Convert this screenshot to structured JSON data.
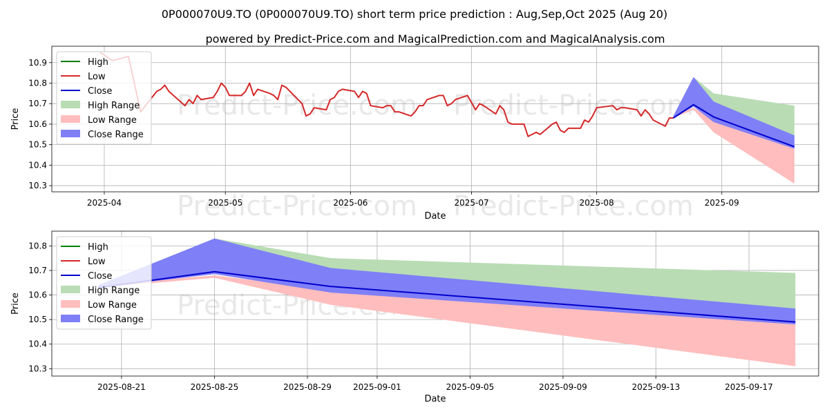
{
  "title": "0P000070U9.TO (0P000070U9.TO) short term price prediction : Aug,Sep,Oct 2025 (Aug 20)",
  "subtitle": "powered by Predict-Price.com and MagicalPrediction.com and MagicalAnalysis.com",
  "watermark": "Predict-Price.com",
  "colors": {
    "high": "#008000",
    "low": "#d62728",
    "close": "#0000cc",
    "high_range": "#b9dcb4",
    "low_range": "#ffbdbd",
    "close_range": "#7f7ff7",
    "grid": "#b0b0b0"
  },
  "legend": {
    "position": "top-left",
    "items": [
      "High",
      "Low",
      "Close",
      "High Range",
      "Low Range",
      "Close Range"
    ]
  },
  "chart_data": [
    {
      "type": "line",
      "panel": "top",
      "xlabel": "Date",
      "ylabel": "Price",
      "xlim": [
        "2025-03-19",
        "2025-09-25"
      ],
      "ylim": [
        10.27,
        10.98
      ],
      "xticks": [
        "2025-04-01",
        "2025-05-01",
        "2025-06-01",
        "2025-07-01",
        "2025-08-01",
        "2025-09-01"
      ],
      "xtick_labels": [
        "2025-04",
        "2025-05",
        "2025-06",
        "2025-07",
        "2025-08",
        "2025-09"
      ],
      "yticks": [
        10.3,
        10.4,
        10.5,
        10.6,
        10.7,
        10.8,
        10.9
      ],
      "grid": true,
      "series": [
        {
          "name": "Low",
          "x": [
            "2025-03-31",
            "2025-04-03",
            "2025-04-07",
            "2025-04-10",
            "2025-04-14",
            "2025-04-15",
            "2025-04-16",
            "2025-04-17",
            "2025-04-21",
            "2025-04-22",
            "2025-04-23",
            "2025-04-24",
            "2025-04-25",
            "2025-04-28",
            "2025-04-29",
            "2025-04-30",
            "2025-05-01",
            "2025-05-02",
            "2025-05-05",
            "2025-05-06",
            "2025-05-07",
            "2025-05-08",
            "2025-05-09",
            "2025-05-12",
            "2025-05-13",
            "2025-05-14",
            "2025-05-15",
            "2025-05-16",
            "2025-05-20",
            "2025-05-21",
            "2025-05-22",
            "2025-05-23",
            "2025-05-26",
            "2025-05-27",
            "2025-05-28",
            "2025-05-29",
            "2025-05-30",
            "2025-06-02",
            "2025-06-03",
            "2025-06-04",
            "2025-06-05",
            "2025-06-06",
            "2025-06-09",
            "2025-06-10",
            "2025-06-11",
            "2025-06-12",
            "2025-06-13",
            "2025-06-16",
            "2025-06-17",
            "2025-06-18",
            "2025-06-19",
            "2025-06-20",
            "2025-06-23",
            "2025-06-24",
            "2025-06-25",
            "2025-06-26",
            "2025-06-27",
            "2025-06-30",
            "2025-07-02",
            "2025-07-03",
            "2025-07-04",
            "2025-07-07",
            "2025-07-08",
            "2025-07-09",
            "2025-07-10",
            "2025-07-11",
            "2025-07-14",
            "2025-07-15",
            "2025-07-16",
            "2025-07-17",
            "2025-07-18",
            "2025-07-21",
            "2025-07-22",
            "2025-07-23",
            "2025-07-24",
            "2025-07-25",
            "2025-07-28",
            "2025-07-29",
            "2025-07-30",
            "2025-07-31",
            "2025-08-01",
            "2025-08-05",
            "2025-08-06",
            "2025-08-07",
            "2025-08-08",
            "2025-08-11",
            "2025-08-12",
            "2025-08-13",
            "2025-08-14",
            "2025-08-15",
            "2025-08-18",
            "2025-08-19",
            "2025-08-20"
          ],
          "values": [
            10.95,
            10.91,
            10.93,
            10.66,
            10.76,
            10.77,
            10.79,
            10.76,
            10.69,
            10.72,
            10.7,
            10.74,
            10.72,
            10.73,
            10.76,
            10.8,
            10.78,
            10.74,
            10.74,
            10.76,
            10.8,
            10.74,
            10.77,
            10.75,
            10.74,
            10.72,
            10.79,
            10.78,
            10.7,
            10.64,
            10.65,
            10.68,
            10.67,
            10.72,
            10.73,
            10.76,
            10.77,
            10.76,
            10.73,
            10.76,
            10.75,
            10.69,
            10.68,
            10.69,
            10.69,
            10.66,
            10.66,
            10.64,
            10.66,
            10.69,
            10.69,
            10.72,
            10.74,
            10.74,
            10.69,
            10.7,
            10.72,
            10.74,
            10.67,
            10.7,
            10.69,
            10.65,
            10.69,
            10.67,
            10.61,
            10.6,
            10.6,
            10.54,
            10.55,
            10.56,
            10.55,
            10.6,
            10.61,
            10.57,
            10.56,
            10.58,
            10.58,
            10.62,
            10.61,
            10.64,
            10.68,
            10.69,
            10.67,
            10.68,
            10.68,
            10.67,
            10.64,
            10.67,
            10.65,
            10.62,
            10.59,
            10.63,
            10.63
          ]
        }
      ],
      "forecast": {
        "x": [
          "2025-08-20",
          "2025-08-25",
          "2025-08-30",
          "2025-09-19"
        ],
        "high_range": {
          "upper": [
            10.64,
            10.83,
            10.75,
            10.69
          ],
          "lower": [
            10.63,
            10.69,
            10.63,
            10.5
          ]
        },
        "close_range": {
          "upper": [
            10.64,
            10.83,
            10.71,
            10.545
          ],
          "lower": [
            10.63,
            10.685,
            10.61,
            10.48
          ]
        },
        "low_range": {
          "upper": [
            10.64,
            10.68,
            10.62,
            10.48
          ],
          "lower": [
            10.63,
            10.67,
            10.56,
            10.31
          ]
        },
        "close": [
          10.63,
          10.695,
          10.635,
          10.49
        ]
      }
    },
    {
      "type": "line",
      "panel": "bottom",
      "xlabel": "Date",
      "ylabel": "Price",
      "xlim": [
        "2025-08-18",
        "2025-09-20"
      ],
      "ylim": [
        10.27,
        10.86
      ],
      "xticks": [
        "2025-08-21",
        "2025-08-25",
        "2025-08-29",
        "2025-09-01",
        "2025-09-05",
        "2025-09-09",
        "2025-09-13",
        "2025-09-17"
      ],
      "xtick_labels": [
        "2025-08-21",
        "2025-08-25",
        "2025-08-29",
        "2025-09-01",
        "2025-09-05",
        "2025-09-09",
        "2025-09-13",
        "2025-09-17"
      ],
      "yticks": [
        10.3,
        10.4,
        10.5,
        10.6,
        10.7,
        10.8
      ],
      "grid": true,
      "forecast": {
        "x": [
          "2025-08-20",
          "2025-08-25",
          "2025-08-30",
          "2025-09-19"
        ],
        "high_range": {
          "upper": [
            10.64,
            10.83,
            10.75,
            10.69
          ],
          "lower": [
            10.63,
            10.69,
            10.63,
            10.5
          ]
        },
        "close_range": {
          "upper": [
            10.64,
            10.83,
            10.71,
            10.545
          ],
          "lower": [
            10.63,
            10.685,
            10.61,
            10.48
          ]
        },
        "low_range": {
          "upper": [
            10.64,
            10.68,
            10.62,
            10.48
          ],
          "lower": [
            10.63,
            10.67,
            10.56,
            10.31
          ]
        },
        "close": [
          10.63,
          10.695,
          10.635,
          10.49
        ]
      }
    }
  ]
}
